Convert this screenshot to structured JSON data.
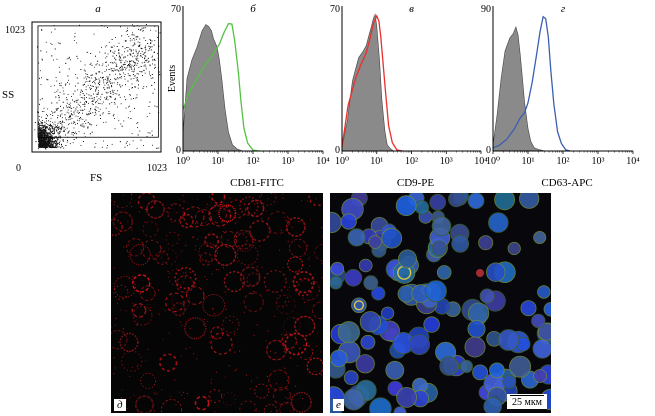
{
  "chart_data": [
    {
      "type": "scatter",
      "panel_label": "а",
      "xlabel": "FS",
      "ylabel": "SS",
      "xlim": [
        0,
        1023
      ],
      "ylim": [
        0,
        1023
      ],
      "x_tick_labels": [
        "0",
        "1023"
      ],
      "y_tick_labels": [
        "1023"
      ],
      "gate": {
        "x": [
          40,
          1010
        ],
        "y": [
          110,
          1000
        ]
      },
      "density": "dense population near origin extending diagonally towards upper right"
    },
    {
      "type": "area",
      "panel_label": "б",
      "xlabel": "CD81-FITC",
      "ylabel": "Events",
      "x_scale": "log",
      "xlim": [
        1,
        10000
      ],
      "ylim": [
        0,
        70
      ],
      "y_tick_labels": [
        "70",
        "0"
      ],
      "x_tick_labels": [
        "10⁰",
        "10¹",
        "10²",
        "10³",
        "10⁴"
      ],
      "series": [
        {
          "role": "isotype control",
          "color": "#8a8a8a",
          "x": [
            1.0,
            1.3,
            1.8,
            2.5,
            3.5,
            4.5,
            5.5,
            6.5,
            7.5,
            8.5,
            9.5,
            11,
            13,
            16,
            20,
            26,
            35,
            50
          ],
          "y": [
            8,
            35,
            44,
            50,
            58,
            61,
            60,
            58,
            54,
            52,
            50,
            44,
            34,
            20,
            9,
            3,
            1,
            0
          ]
        },
        {
          "role": "stained",
          "color": "#55c043",
          "x": [
            1.0,
            1.5,
            2.5,
            4,
            6,
            8,
            11,
            15,
            20,
            25,
            30,
            38,
            45,
            55,
            70,
            100,
            150
          ],
          "y": [
            20,
            28,
            35,
            41,
            45,
            48,
            52,
            58,
            62,
            61,
            53,
            38,
            24,
            11,
            4,
            1,
            0
          ]
        }
      ]
    },
    {
      "type": "area",
      "panel_label": "в",
      "xlabel": "CD9-PE",
      "ylabel": "",
      "x_scale": "log",
      "xlim": [
        1,
        10000
      ],
      "ylim": [
        0,
        70
      ],
      "y_tick_labels": [
        "70",
        "0"
      ],
      "x_tick_labels": [
        "10⁰",
        "10¹",
        "10²",
        "10³",
        "10⁴"
      ],
      "series": [
        {
          "role": "isotype control",
          "color": "#8a8a8a",
          "x": [
            1.0,
            1.4,
            2,
            3,
            4,
            5,
            6,
            7,
            8,
            9,
            10,
            12,
            14,
            17,
            20,
            25,
            30
          ],
          "y": [
            2,
            14,
            34,
            45,
            48,
            51,
            56,
            60,
            64,
            66,
            60,
            44,
            25,
            10,
            3,
            1,
            0
          ]
        },
        {
          "role": "stained",
          "color": "#e8302c",
          "x": [
            1.0,
            1.5,
            2.5,
            3.5,
            5,
            6.5,
            8,
            10,
            11.5,
            13,
            15,
            18,
            22,
            28,
            38,
            55
          ],
          "y": [
            2,
            22,
            36,
            42,
            47,
            54,
            61,
            65,
            62,
            55,
            44,
            28,
            12,
            4,
            1,
            0
          ]
        }
      ]
    },
    {
      "type": "area",
      "panel_label": "г",
      "xlabel": "CD63-APC",
      "ylabel": "",
      "x_scale": "log",
      "xlim": [
        1,
        10000
      ],
      "ylim": [
        0,
        90
      ],
      "y_tick_labels": [
        "90",
        "0"
      ],
      "x_tick_labels": [
        "10⁰",
        "10¹",
        "10²",
        "10³",
        "10⁴"
      ],
      "series": [
        {
          "role": "isotype control",
          "color": "#8a8a8a",
          "x": [
            1.0,
            1.3,
            1.7,
            2.2,
            3,
            3.8,
            4.5,
            5.2,
            6,
            7,
            8,
            10,
            12,
            15,
            20,
            30
          ],
          "y": [
            4,
            22,
            45,
            62,
            70,
            73,
            77,
            72,
            60,
            44,
            30,
            14,
            6,
            2,
            1,
            0
          ]
        },
        {
          "role": "stained",
          "color": "#3b5fb0",
          "x": [
            1.0,
            1.5,
            2.5,
            4,
            6,
            8,
            10,
            13,
            17,
            22,
            27,
            32,
            38,
            45,
            55,
            70,
            90,
            120,
            160
          ],
          "y": [
            2,
            4,
            8,
            14,
            20,
            24,
            30,
            42,
            58,
            74,
            84,
            82,
            70,
            50,
            28,
            12,
            4,
            1,
            0
          ]
        }
      ]
    }
  ],
  "images": {
    "left": {
      "panel_label": "д"
    },
    "right": {
      "panel_label": "е",
      "scale_bar_label": "25 мкм"
    }
  }
}
